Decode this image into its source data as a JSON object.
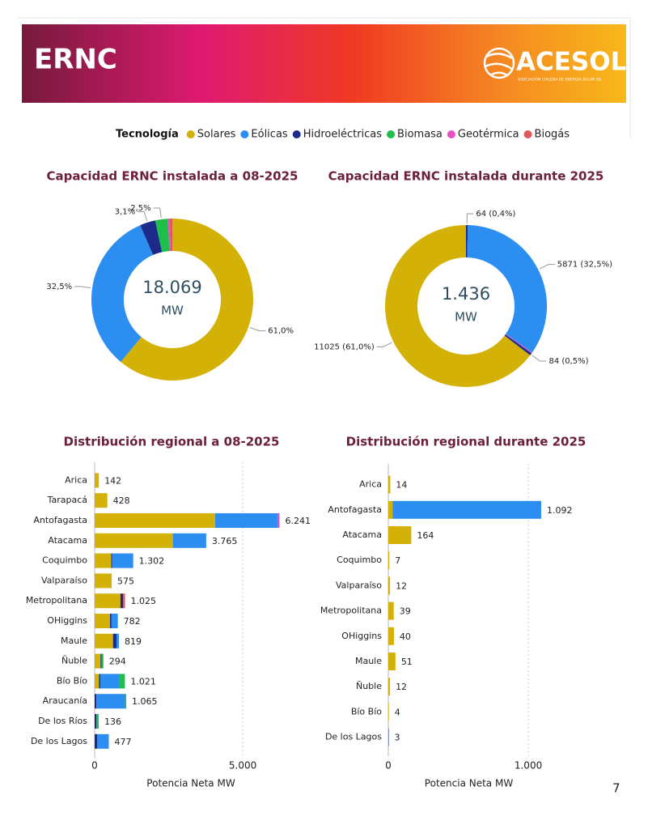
{
  "header": {
    "title": "ERNC",
    "logo": "ACESOL",
    "logo_subtitle": "ASOCIACIÓN CHILENA DE ENERGÍA SOLAR AG"
  },
  "legend": {
    "title": "Tecnología",
    "items": [
      {
        "name": "Solares",
        "color": "#d4b106"
      },
      {
        "name": "Eólicas",
        "color": "#2b8ef0"
      },
      {
        "name": "Hidroeléctricas",
        "color": "#1c2a8a"
      },
      {
        "name": "Biomasa",
        "color": "#1dbf4a"
      },
      {
        "name": "Geotérmica",
        "color": "#e84fc0"
      },
      {
        "name": "Biogás",
        "color": "#e0565b"
      }
    ]
  },
  "page_number": "7",
  "chart_data": [
    {
      "type": "pie",
      "title": "Capacidad ERNC instalada a 08-2025",
      "center_value": "18.069",
      "center_unit": "MW",
      "values": [
        61,
        32.5,
        3.1,
        2.5,
        0.4,
        0.5
      ],
      "colors": [
        "#d4b106",
        "#2b8ef0",
        "#1c2a8a",
        "#1dbf4a",
        "#e84fc0",
        "#e0565b"
      ],
      "value_labels": [
        "61,0%",
        "32,5%",
        "3,1%",
        "2,5%",
        null,
        null
      ]
    },
    {
      "type": "pie",
      "title": "Capacidad ERNC instalada durante 2025",
      "center_value": "1.436",
      "center_unit": "MW",
      "values": [
        64,
        5871,
        30,
        84,
        11025
      ],
      "colors": [
        "#1c2a8a",
        "#2b8ef0",
        "#e84fc0",
        "#1c2a8a",
        "#d4b106"
      ],
      "value_labels": [
        "64 (0,4%)",
        "5871 (32,5%)",
        null,
        "84 (0,5%)",
        "11025 (61,0%)"
      ]
    },
    {
      "type": "barh",
      "title": "Distribución regional a 08-2025",
      "x_label": "Potencia Neta MW",
      "categories": [
        "Arica",
        "Tarapacá",
        "Antofagasta",
        "Atacama",
        "Coquimbo",
        "Valparaíso",
        "Metropolitana",
        "OHiggins",
        "Maule",
        "Ñuble",
        "Bío Bío",
        "Araucanía",
        "De los Ríos",
        "De los Lagos"
      ],
      "series": [
        {
          "color": "#d4b106",
          "values": [
            142,
            428,
            4066,
            2640,
            560,
            575,
            870,
            520,
            620,
            200,
            150,
            0,
            0,
            0
          ]
        },
        {
          "color": "#1c2a8a",
          "values": [
            0,
            0,
            0,
            0,
            30,
            0,
            90,
            50,
            119,
            34,
            40,
            60,
            60,
            90
          ]
        },
        {
          "color": "#2b8ef0",
          "values": [
            0,
            0,
            2105,
            1125,
            712,
            0,
            0,
            212,
            80,
            0,
            630,
            965,
            0,
            387
          ]
        },
        {
          "color": "#1dbf4a",
          "values": [
            0,
            0,
            0,
            0,
            0,
            0,
            0,
            0,
            0,
            60,
            201,
            40,
            76,
            0
          ]
        },
        {
          "color": "#e84fc0",
          "values": [
            0,
            0,
            70,
            0,
            0,
            0,
            0,
            0,
            0,
            0,
            0,
            0,
            0,
            0
          ]
        },
        {
          "color": "#e0565b",
          "values": [
            0,
            0,
            0,
            0,
            0,
            0,
            65,
            0,
            0,
            0,
            0,
            0,
            0,
            0
          ]
        }
      ],
      "totals": [
        142,
        428,
        6241,
        3765,
        1302,
        575,
        1025,
        782,
        819,
        294,
        1021,
        1065,
        136,
        477
      ],
      "total_labels": [
        "142",
        "428",
        "6.241",
        "3.765",
        "1.302",
        "575",
        "1.025",
        "782",
        "819",
        "294",
        "1.021",
        "1.065",
        "136",
        "477"
      ],
      "xlim": [
        0,
        6500
      ],
      "xticks": [
        0,
        {
          "value": 5000,
          "label": "5.000"
        }
      ]
    },
    {
      "type": "barh",
      "title": "Distribución regional durante 2025",
      "x_label": "Potencia Neta MW",
      "categories": [
        "Arica",
        "Antofagasta",
        "Atacama",
        "Coquimbo",
        "Valparaíso",
        "Metropolitana",
        "OHiggins",
        "Maule",
        "Ñuble",
        "Bío Bío",
        "De los Lagos"
      ],
      "series": [
        {
          "color": "#d4b106",
          "values": [
            14,
            30,
            164,
            7,
            12,
            39,
            40,
            51,
            12,
            4,
            0
          ]
        },
        {
          "color": "#1c2a8a",
          "values": [
            0,
            0,
            0,
            0,
            0,
            0,
            0,
            0,
            0,
            0,
            3
          ]
        },
        {
          "color": "#2b8ef0",
          "values": [
            0,
            1062,
            0,
            0,
            0,
            0,
            0,
            0,
            0,
            0,
            0
          ]
        }
      ],
      "totals": [
        14,
        1092,
        164,
        7,
        12,
        39,
        40,
        51,
        12,
        4,
        3
      ],
      "total_labels": [
        "14",
        "1.092",
        "164",
        "7",
        "12",
        "39",
        "40",
        "51",
        "12",
        "4",
        "3"
      ],
      "xlim": [
        0,
        1150
      ],
      "xticks": [
        0,
        {
          "value": 1000,
          "label": "1.000"
        }
      ]
    }
  ]
}
